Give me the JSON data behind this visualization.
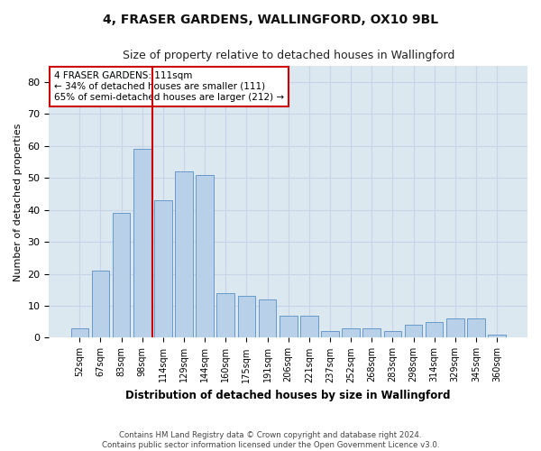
{
  "title": "4, FRASER GARDENS, WALLINGFORD, OX10 9BL",
  "subtitle": "Size of property relative to detached houses in Wallingford",
  "xlabel": "Distribution of detached houses by size in Wallingford",
  "ylabel": "Number of detached properties",
  "bar_labels": [
    "52sqm",
    "67sqm",
    "83sqm",
    "98sqm",
    "114sqm",
    "129sqm",
    "144sqm",
    "160sqm",
    "175sqm",
    "191sqm",
    "206sqm",
    "221sqm",
    "237sqm",
    "252sqm",
    "268sqm",
    "283sqm",
    "298sqm",
    "314sqm",
    "329sqm",
    "345sqm",
    "360sqm"
  ],
  "bar_values": [
    3,
    21,
    39,
    59,
    43,
    52,
    51,
    14,
    13,
    12,
    7,
    7,
    2,
    3,
    3,
    2,
    4,
    5,
    6,
    6,
    1
  ],
  "bar_color": "#b8d0e8",
  "bar_edge_color": "#6699cc",
  "vline_color": "#cc0000",
  "annotation_text": "4 FRASER GARDENS: 111sqm\n← 34% of detached houses are smaller (111)\n65% of semi-detached houses are larger (212) →",
  "annotation_box_color": "#ffffff",
  "annotation_box_edge_color": "#cc0000",
  "ylim": [
    0,
    85
  ],
  "yticks": [
    0,
    10,
    20,
    30,
    40,
    50,
    60,
    70,
    80
  ],
  "grid_color": "#c8d4e8",
  "background_color": "#dce8f0",
  "footer_line1": "Contains HM Land Registry data © Crown copyright and database right 2024.",
  "footer_line2": "Contains public sector information licensed under the Open Government Licence v3.0."
}
